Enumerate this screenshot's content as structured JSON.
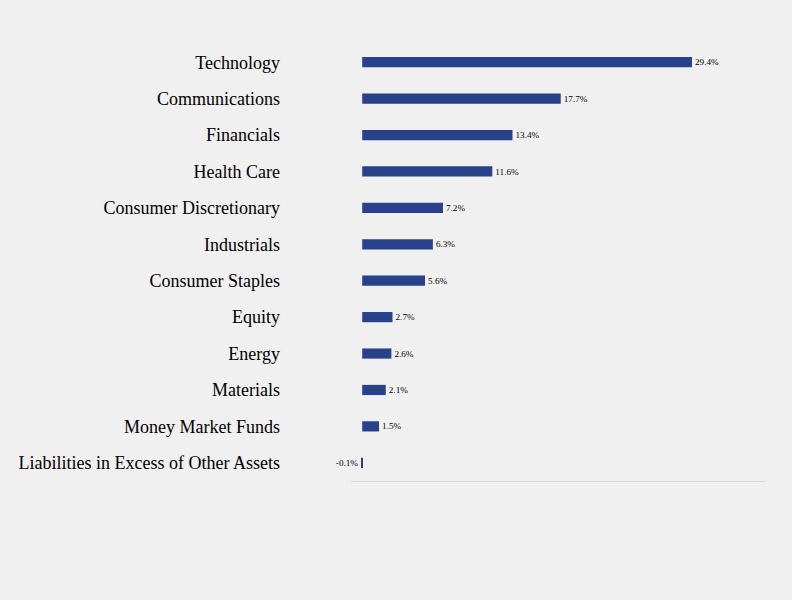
{
  "chart_data": {
    "type": "bar",
    "orientation": "horizontal",
    "categories": [
      "Technology",
      "Communications",
      "Financials",
      "Health Care",
      "Consumer Discretionary",
      "Industrials",
      "Consumer Staples",
      "Equity",
      "Energy",
      "Materials",
      "Money Market Funds",
      "Liabilities in Excess of Other Assets"
    ],
    "values": [
      29.4,
      17.7,
      13.4,
      11.6,
      7.2,
      6.3,
      5.6,
      2.7,
      2.6,
      2.1,
      1.5,
      -0.1
    ],
    "value_labels": [
      "29.4%",
      "17.7%",
      "13.4%",
      "11.6%",
      "7.2%",
      "6.3%",
      "5.6%",
      "2.7%",
      "2.6%",
      "2.1%",
      "1.5%",
      "-0.1%"
    ],
    "color": "#27418b",
    "xlim": [
      -1,
      36
    ],
    "xticks": [
      0
    ],
    "grid": false,
    "data_labels": true,
    "tick_labels": "y"
  }
}
